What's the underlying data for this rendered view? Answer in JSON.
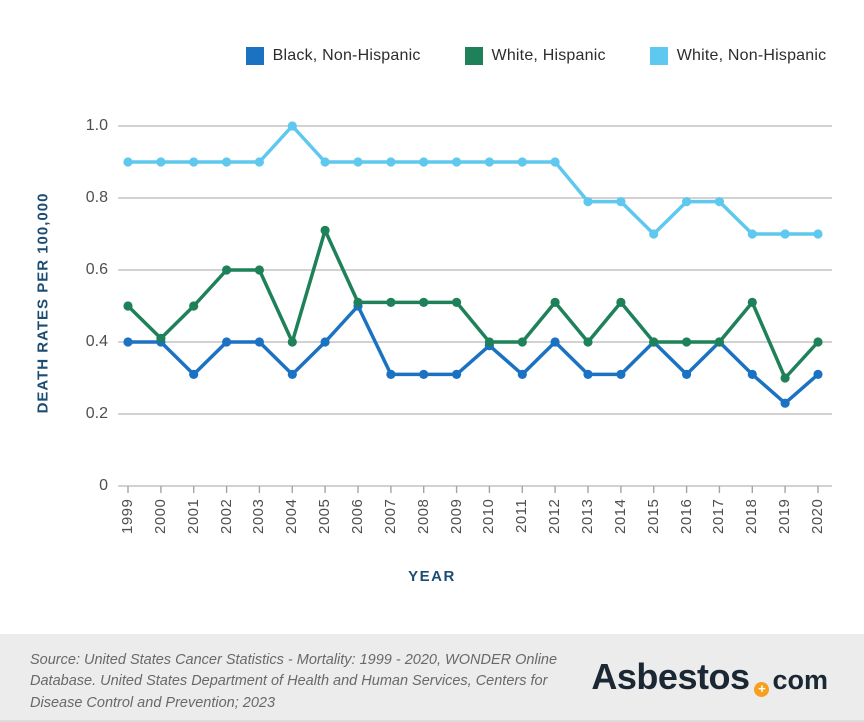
{
  "legend": {
    "items": [
      {
        "label": "Black, Non-Hispanic",
        "color": "#1b72c2"
      },
      {
        "label": "White, Hispanic",
        "color": "#1f8159"
      },
      {
        "label": "White, Non-Hispanic",
        "color": "#5ec8ee"
      }
    ]
  },
  "chart_data": {
    "type": "line",
    "x": [
      1999,
      2000,
      2001,
      2002,
      2003,
      2004,
      2005,
      2006,
      2007,
      2008,
      2009,
      2010,
      2011,
      2012,
      2013,
      2014,
      2015,
      2016,
      2017,
      2018,
      2019,
      2020
    ],
    "series": [
      {
        "name": "Black, Non-Hispanic",
        "color": "#1b72c2",
        "values": [
          0.4,
          0.4,
          0.31,
          0.4,
          0.4,
          0.31,
          0.4,
          0.5,
          0.31,
          0.31,
          0.31,
          0.39,
          0.31,
          0.4,
          0.31,
          0.31,
          0.4,
          0.31,
          0.4,
          0.31,
          0.23,
          0.31
        ]
      },
      {
        "name": "White, Hispanic",
        "color": "#1f8159",
        "values": [
          0.5,
          0.41,
          0.5,
          0.6,
          0.6,
          0.4,
          0.71,
          0.51,
          0.51,
          0.51,
          0.51,
          0.4,
          0.4,
          0.51,
          0.4,
          0.51,
          0.4,
          0.4,
          0.4,
          0.51,
          0.3,
          0.4
        ]
      },
      {
        "name": "White, Non-Hispanic",
        "color": "#5ec8ee",
        "values": [
          0.9,
          0.9,
          0.9,
          0.9,
          0.9,
          1.0,
          0.9,
          0.9,
          0.9,
          0.9,
          0.9,
          0.9,
          0.9,
          0.9,
          0.79,
          0.79,
          0.7,
          0.79,
          0.79,
          0.7,
          0.7,
          0.7
        ]
      }
    ],
    "title": "",
    "xlabel": "YEAR",
    "ylabel": "DEATH RATES PER 100,000",
    "ylim": [
      0,
      1.0
    ],
    "y_ticks": [
      "1.0",
      "0.8",
      "0.6",
      "0.4",
      "0.2",
      "0"
    ],
    "grid": true,
    "legend_position": "top"
  },
  "footer": {
    "source": "Source: United States Cancer Statistics - Mortality: 1999 - 2020, WONDER Online Database. United States Department of Health and Human Services, Centers for Disease Control and Prevention; 2023",
    "logo": {
      "brand": "Asbestos",
      "plus": "+",
      "tld": "com"
    }
  }
}
